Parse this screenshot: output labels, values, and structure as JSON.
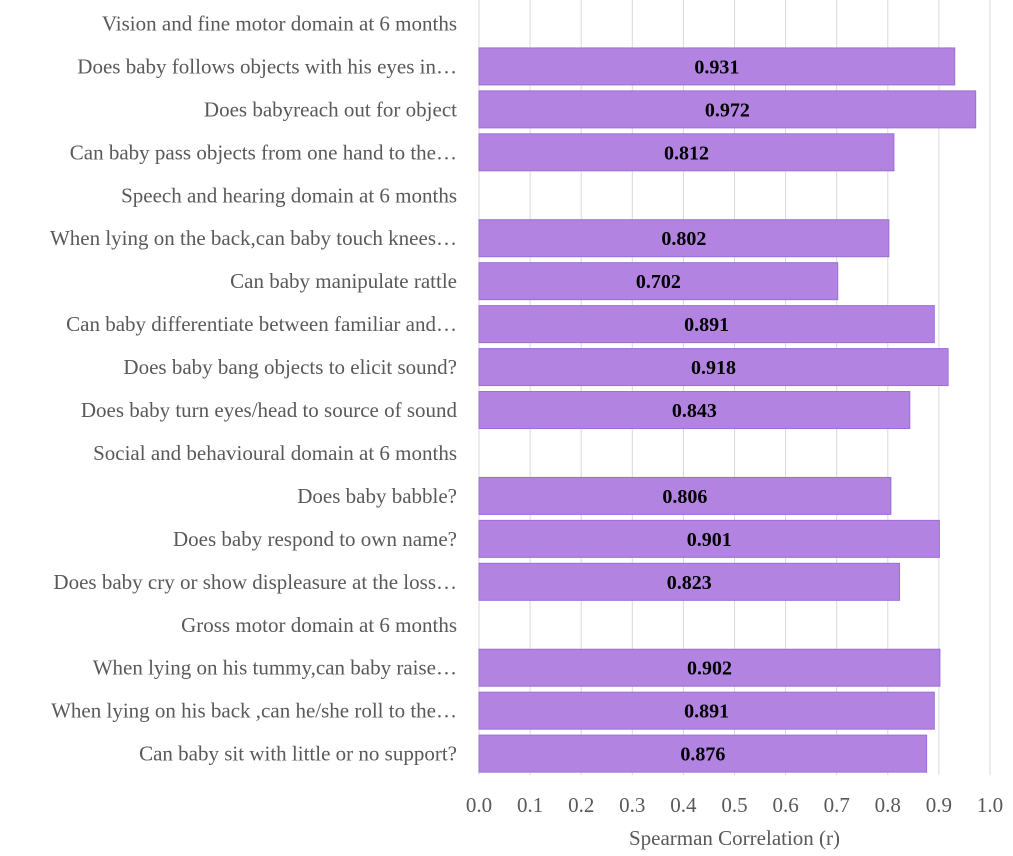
{
  "chart_data": {
    "type": "bar",
    "orientation": "horizontal",
    "title": "",
    "xlabel": "Spearman Correlation (r)",
    "ylabel": "",
    "xlim": [
      0.0,
      1.0
    ],
    "xticks": [
      "0.0",
      "0.1",
      "0.2",
      "0.3",
      "0.4",
      "0.5",
      "0.6",
      "0.7",
      "0.8",
      "0.9",
      "1.0"
    ],
    "grid": true,
    "bar_color": "#b283e0",
    "categories": [
      "Vision and fine motor domain at 6 months",
      "Does baby follows objects with his eyes in…",
      "Does babyreach out for object",
      "Can baby pass objects from one hand to the…",
      "Speech and hearing domain at 6 months",
      "When lying on the back,can baby touch knees…",
      "Can baby manipulate rattle",
      "Can baby differentiate between familiar and…",
      "Does baby bang objects to elicit sound?",
      "Does baby turn eyes/head to source of sound",
      "Social and behavioural domain at 6 months",
      "Does baby babble?",
      "Does baby respond to own name?",
      "Does baby cry or show displeasure at the loss…",
      "Gross motor domain at 6 months",
      "When lying on his tummy,can baby raise…",
      "When lying on his back ,can he/she roll to the…",
      "Can baby sit with little or no support?"
    ],
    "values": [
      null,
      0.931,
      0.972,
      0.812,
      null,
      0.802,
      0.702,
      0.891,
      0.918,
      0.843,
      null,
      0.806,
      0.901,
      0.823,
      null,
      0.902,
      0.891,
      0.876
    ],
    "data_labels": [
      "",
      "0.931",
      "0.972",
      "0.812",
      "",
      "0.802",
      "0.702",
      "0.891",
      "0.918",
      "0.843",
      "",
      "0.806",
      "0.901",
      "0.823",
      "",
      "0.902",
      "0.891",
      "0.876"
    ]
  }
}
